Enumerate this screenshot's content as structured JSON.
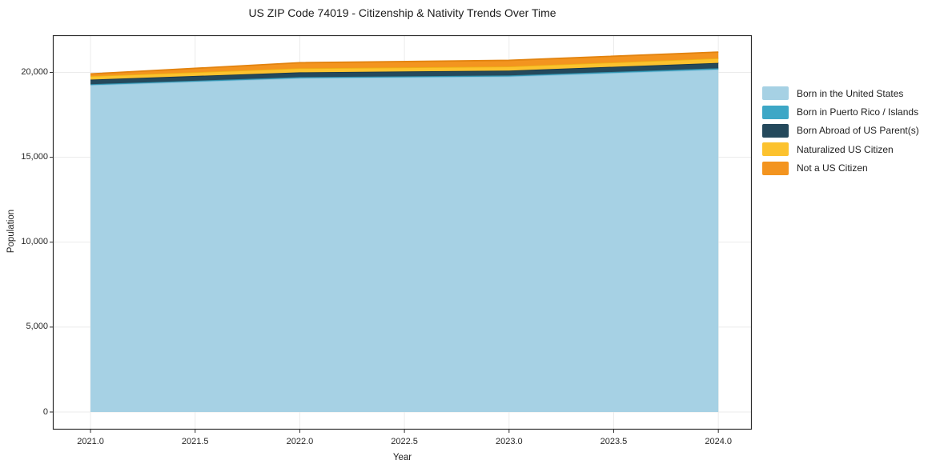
{
  "chart_data": {
    "type": "area",
    "stacked": true,
    "title": "US ZIP Code 74019 - Citizenship & Nativity Trends Over Time",
    "xlabel": "Year",
    "ylabel": "Population",
    "x": [
      2021,
      2022,
      2023,
      2024
    ],
    "series": [
      {
        "name": "Born in the United States",
        "color": "#a6d1e4",
        "line_color": "#8fc3dc",
        "values": [
          19250,
          19660,
          19760,
          20170
        ]
      },
      {
        "name": "Born in Puerto Rico / Islands",
        "color": "#3da7c6",
        "line_color": "#318ea9",
        "values": [
          55,
          60,
          60,
          75
        ]
      },
      {
        "name": "Born Abroad of US Parent(s)",
        "color": "#24495c",
        "line_color": "#1b3848",
        "values": [
          270,
          285,
          285,
          315
        ]
      },
      {
        "name": "Naturalized US Citizen",
        "color": "#fcc22e",
        "line_color": "#edb114",
        "values": [
          205,
          235,
          240,
          270
        ]
      },
      {
        "name": "Not a US Citizen",
        "color": "#f3941f",
        "line_color": "#e2830f",
        "values": [
          130,
          330,
          365,
          365
        ]
      }
    ],
    "xticks": [
      2021.0,
      2021.5,
      2022.0,
      2022.5,
      2023.0,
      2023.5,
      2024.0
    ],
    "xtick_labels": [
      "2021.0",
      "2021.5",
      "2022.0",
      "2022.5",
      "2023.0",
      "2023.5",
      "2024.0"
    ],
    "yticks": [
      0,
      5000,
      10000,
      15000,
      20000
    ],
    "ytick_labels": [
      "0",
      "5,000",
      "10,000",
      "15,000",
      "20,000"
    ],
    "xlim": [
      2020.82,
      2024.16
    ],
    "ylim": [
      -1036,
      22190
    ],
    "grid": true,
    "grid_color": "#ebebeb",
    "spine_color": "#2d2d2d",
    "legend_position": "right-outside"
  }
}
